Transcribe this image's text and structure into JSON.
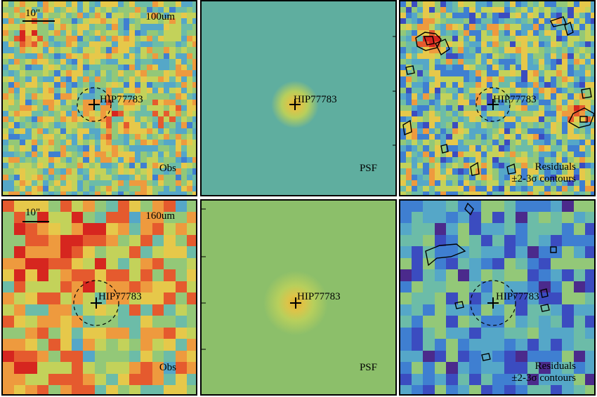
{
  "figure": {
    "rows": [
      {
        "band": "100um",
        "scale_label": "10\"",
        "panels": [
          {
            "kind": "obs",
            "caption": "Obs",
            "target": "HIP77783",
            "field": "noise-warm"
          },
          {
            "kind": "psf",
            "caption": "PSF",
            "target": "HIP77783",
            "field": "psf-teal"
          },
          {
            "kind": "res",
            "caption": "Residuals",
            "caption2": "±2-3σ contours",
            "target": "HIP77783",
            "field": "noise-cool"
          }
        ],
        "axis_ticks": [
          "30",
          "20",
          "10"
        ]
      },
      {
        "band": "160um",
        "scale_label": "10\"",
        "panels": [
          {
            "kind": "obs",
            "caption": "Obs",
            "target": "HIP77783",
            "field": "noise-hot"
          },
          {
            "kind": "psf",
            "caption": "PSF",
            "target": "HIP77783",
            "field": "psf-green"
          },
          {
            "kind": "res",
            "caption": "Residuals",
            "caption2": "±2-3σ contours",
            "target": "HIP77783",
            "field": "noise-blue"
          }
        ],
        "axis_ticks": [
          "20",
          "15",
          "10",
          "5"
        ]
      }
    ],
    "colors": {
      "palette": [
        "#4b2a8c",
        "#3b4cc0",
        "#3f7fd1",
        "#55a7c8",
        "#6cbca8",
        "#93c878",
        "#c3d25a",
        "#e6c84a",
        "#ee9a3e",
        "#e55a2e",
        "#d6261f"
      ],
      "frame": "#000000",
      "marker": "#000000"
    }
  }
}
